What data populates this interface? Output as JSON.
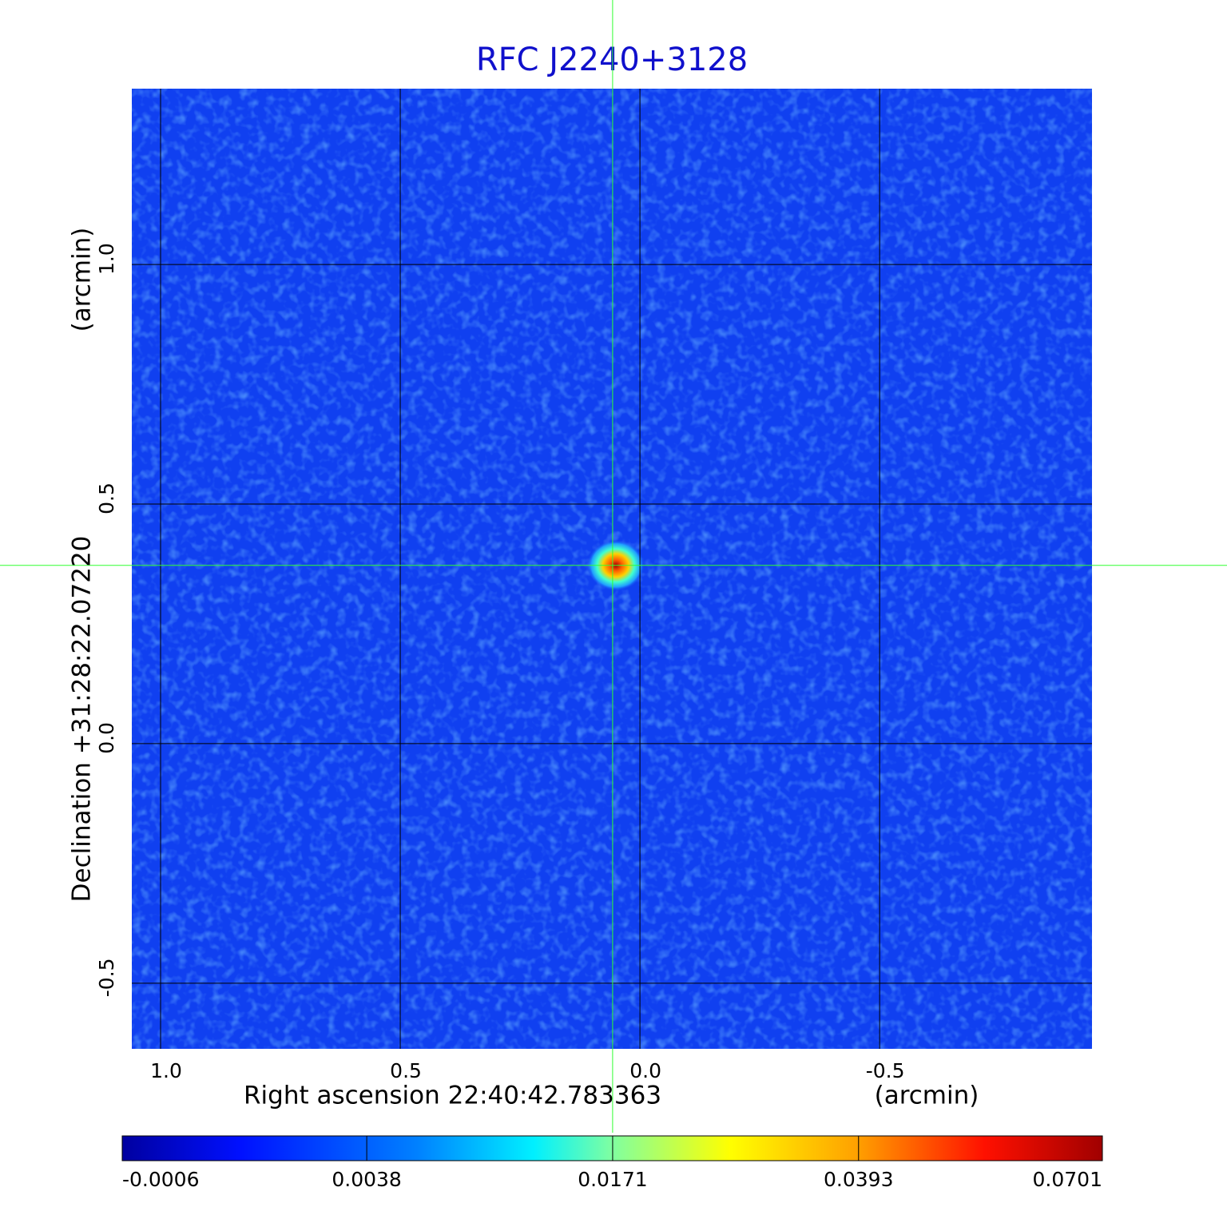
{
  "chart_data": {
    "type": "image",
    "title": "RFC J2240+3128",
    "x_label": "Right ascension  22:40:42.783363",
    "x_unit": "(arcmin)",
    "y_label": "Declination  +31:28:22.07220",
    "y_unit": "(arcmin)",
    "xlim": [
      1.06,
      -0.943
    ],
    "ylim": [
      -0.637,
      1.367
    ],
    "xticks": [
      {
        "value": 1,
        "label": "1.0"
      },
      {
        "value": 0.5,
        "label": "0.5"
      },
      {
        "value": 0,
        "label": "0.0"
      },
      {
        "value": -0.5,
        "label": "-0.5"
      }
    ],
    "yticks": [
      {
        "value": -0.5,
        "label": "-0.5"
      },
      {
        "value": 0,
        "label": "0.0"
      },
      {
        "value": 0.5,
        "label": "0.5"
      },
      {
        "value": 1,
        "label": "1.0"
      }
    ],
    "grid": true,
    "crosshair": {
      "x": 0.057,
      "y": 0.372
    },
    "colorbar": {
      "scale": "sqrt",
      "lim": [
        -0.0006,
        0.0701
      ],
      "ticks": [
        -0.0006,
        0.0038,
        0.0171,
        0.0393,
        0.0701
      ]
    }
  }
}
